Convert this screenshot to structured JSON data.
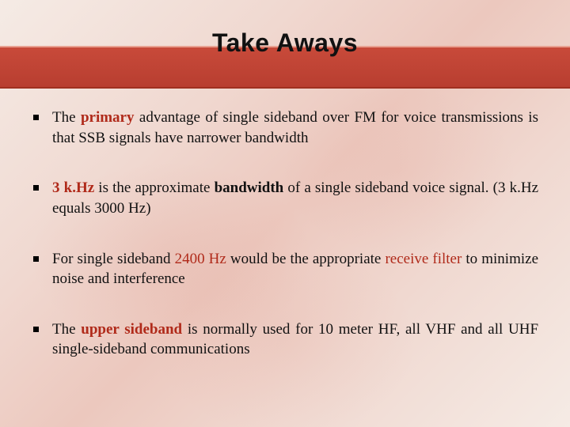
{
  "slide": {
    "title": "Take Aways",
    "title_fontsize": 32,
    "title_color": "#111111",
    "band_color": "#c84a3a",
    "background_gradient": [
      "#f5ebe5",
      "#f0d8d0",
      "#ecc8be"
    ],
    "accent_red": "#b02a1a",
    "body_fontsize": 19,
    "bullets": [
      {
        "t1": "The ",
        "t2_boldred": "primary",
        "t3": " advantage of single sideband over FM for voice transmissions is that SSB signals have narrower bandwidth"
      },
      {
        "t1_boldred": "3 k.Hz",
        "t2": " is the approximate ",
        "t3_bold": "bandwidth",
        "t4": " of a single sideband voice signal.  (3 k.Hz equals 3000 Hz)"
      },
      {
        "t1": "For single sideband ",
        "t2_red": "2400 Hz",
        "t3": " would be the appropriate ",
        "t4_red": "receive filter",
        "t5": " to minimize noise and interference"
      },
      {
        "t1": "The ",
        "t2_boldred": "upper sideband",
        "t3": " is normally used for 10 meter HF,  all VHF and all UHF single-sideband communications"
      }
    ]
  }
}
